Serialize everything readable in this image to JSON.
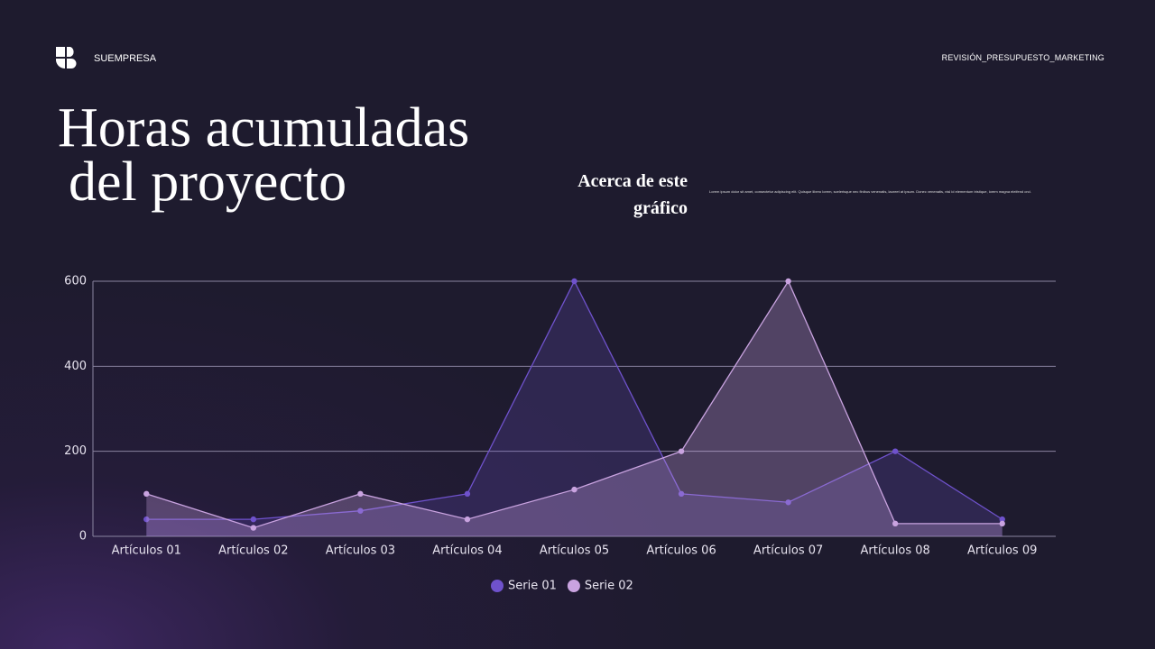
{
  "header": {
    "brand": "SUEMPRESA",
    "tag": "REVISIÓN_PRESUPUESTO_MARKETING"
  },
  "title_lines": [
    "Horas acumuladas",
    "del proyecto"
  ],
  "about": {
    "heading_lines": [
      "Acerca de este",
      "gráfico"
    ],
    "body": "Lorem ipsum dolor sit amet, consectetur adipiscing elit. Quisque libero lorem, scelerisque nec finibus venenatis, laoreet at ipsum. Donec venenatis, nisl id elementum tristique, lorem magna eleifend orci."
  },
  "chart_data": {
    "type": "area",
    "categories": [
      "Artículos 01",
      "Artículos 02",
      "Artículos 03",
      "Artículos 04",
      "Artículos 05",
      "Artículos 06",
      "Artículos 07",
      "Artículos 08",
      "Artículos 09"
    ],
    "series": [
      {
        "name": "Serie 01",
        "color": "#6f52cc",
        "values": [
          40,
          40,
          60,
          100,
          600,
          100,
          80,
          200,
          40
        ]
      },
      {
        "name": "Serie 02",
        "color": "#c9a3e0",
        "values": [
          100,
          20,
          100,
          40,
          110,
          200,
          600,
          30,
          30
        ]
      }
    ],
    "ylim": [
      0,
      600
    ],
    "yticks": [
      0,
      200,
      400,
      600
    ],
    "grid": true
  }
}
